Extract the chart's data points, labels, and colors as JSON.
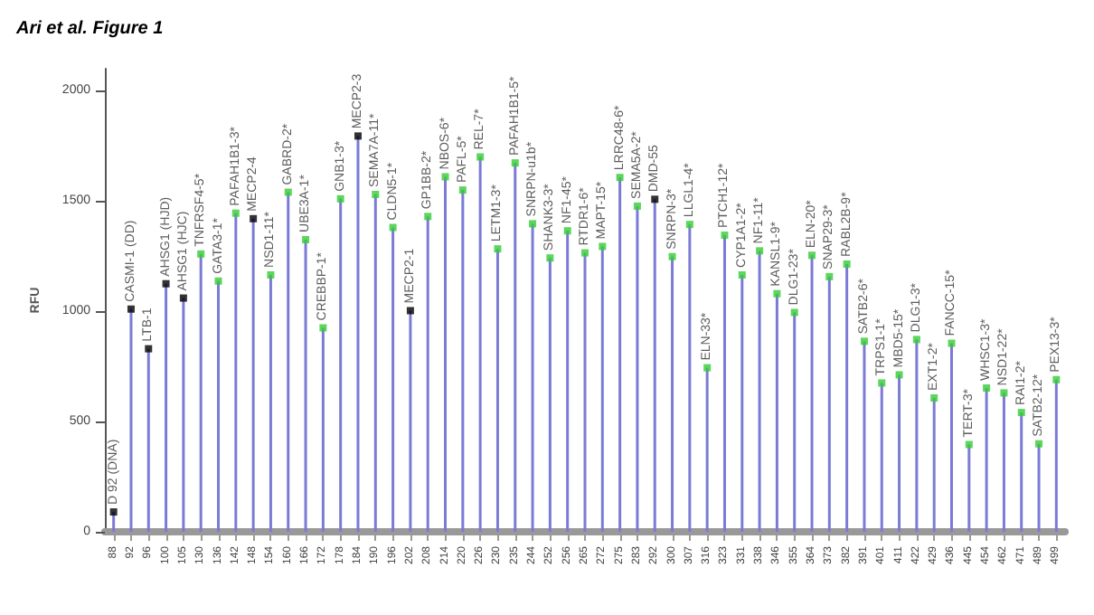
{
  "chart_data": {
    "type": "lollipop",
    "title": "Ari et al. Figure 1",
    "ylabel": "RFU",
    "categories": [
      "88",
      "92",
      "96",
      "100",
      "105",
      "130",
      "136",
      "142",
      "148",
      "154",
      "160",
      "166",
      "172",
      "178",
      "184",
      "190",
      "196",
      "202",
      "208",
      "214",
      "220",
      "226",
      "230",
      "235",
      "244",
      "252",
      "256",
      "265",
      "272",
      "275",
      "283",
      "292",
      "300",
      "307",
      "316",
      "323",
      "331",
      "338",
      "346",
      "355",
      "364",
      "373",
      "382",
      "391",
      "401",
      "411",
      "422",
      "429",
      "436",
      "445",
      "454",
      "462",
      "471",
      "489",
      "499"
    ],
    "values": [
      90,
      1010,
      830,
      1125,
      1060,
      1260,
      1137,
      1445,
      1420,
      1165,
      1540,
      1325,
      925,
      1510,
      1795,
      1530,
      1380,
      1003,
      1430,
      1610,
      1550,
      1700,
      1283,
      1673,
      1397,
      1242,
      1365,
      1265,
      1294,
      1607,
      1477,
      1508,
      1248,
      1394,
      744,
      1345,
      1165,
      1274,
      1080,
      995,
      1254,
      1157,
      1214,
      864,
      675,
      712,
      872,
      607,
      855,
      396,
      652,
      630,
      541,
      399,
      690
    ],
    "value_labels": [
      "D 92 (DNA)",
      "CASMI-1 (DD)",
      "LTB-1",
      "AHSG1 (HJD)",
      "AHSG1 (HJC)",
      "TNFRSF4-5*",
      "GATA3-1*",
      "PAFAH1B1-3*",
      "MECP2-4",
      "NSD1-11*",
      "GABRD-2*",
      "UBE3A-1*",
      "CREBBP-1*",
      "GNB1-3*",
      "MECP2-3",
      "SEMA7A-11*",
      "CLDN5-1*",
      "MECP2-1",
      "GP1BB-2*",
      "NBOS-6*",
      "PAFL-5*",
      "REL-7*",
      "LETM1-3*",
      "PAFAH1B1-5*",
      "SNRPN-u1b*",
      "SHANK3-3*",
      "NF1-45*",
      "RTDR1-6*",
      "MAPT-15*",
      "LRRC48-6*",
      "SEMA5A-2*",
      "DMD-55",
      "SNRPN-3*",
      "LLGL1-4*",
      "ELN-33*",
      "PTCH1-12*",
      "CYP1A1-2*",
      "NF1-11*",
      "KANSL1-9*",
      "DLG1-23*",
      "ELN-20*",
      "SNAP29-3*",
      "RABL2B-9*",
      "SATB2-6*",
      "TRPS1-1*",
      "MBD5-15*",
      "DLG1-3*",
      "EXT1-2*",
      "FANCC-15*",
      "TERT-3*",
      "WHSC1-3*",
      "NSD1-22*",
      "RAI1-2*",
      "SATB2-12*",
      "PEX13-3*"
    ],
    "color": "#7b7bd6",
    "colors": [
      "#000000",
      "#000000",
      "#000000",
      "#000000",
      "#000000",
      "#33cc33",
      "#33cc33",
      "#33cc33",
      "#000000",
      "#33cc33",
      "#33cc33",
      "#33cc33",
      "#33cc33",
      "#33cc33",
      "#000000",
      "#33cc33",
      "#33cc33",
      "#000000",
      "#33cc33",
      "#33cc33",
      "#33cc33",
      "#33cc33",
      "#33cc33",
      "#33cc33",
      "#33cc33",
      "#33cc33",
      "#33cc33",
      "#33cc33",
      "#33cc33",
      "#33cc33",
      "#33cc33",
      "#000000",
      "#33cc33",
      "#33cc33",
      "#33cc33",
      "#33cc33",
      "#33cc33",
      "#33cc33",
      "#33cc33",
      "#33cc33",
      "#33cc33",
      "#33cc33",
      "#33cc33",
      "#33cc33",
      "#33cc33",
      "#33cc33",
      "#33cc33",
      "#33cc33",
      "#33cc33",
      "#33cc33",
      "#33cc33",
      "#33cc33",
      "#33cc33",
      "#33cc33",
      "#33cc33"
    ],
    "ylim": [
      0,
      2100
    ],
    "yticks": [
      0,
      500,
      1000,
      1500,
      2000
    ],
    "grid": false,
    "marker": "square"
  }
}
